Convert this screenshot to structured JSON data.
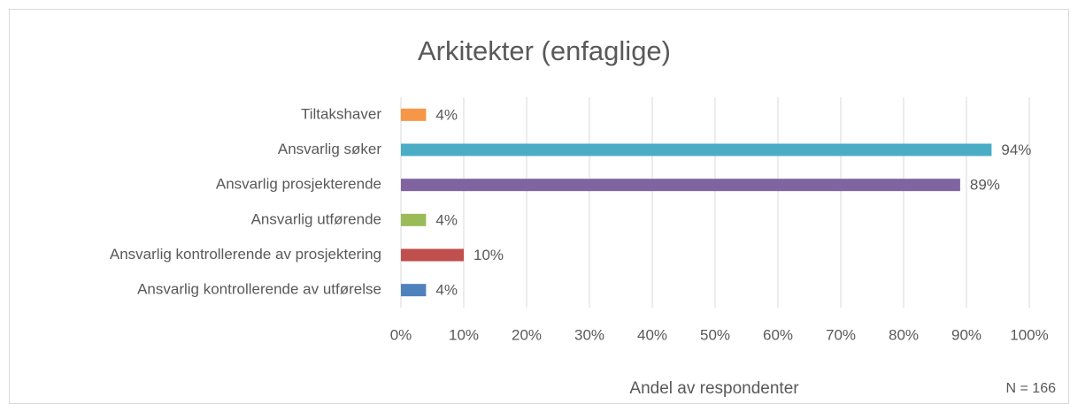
{
  "chart_data": {
    "type": "bar",
    "orientation": "horizontal",
    "title": "Arkitekter (enfaglige)",
    "x_label": "Andel av respondenter",
    "annotation": "N = 166",
    "categories": [
      "Tiltakshaver",
      "Ansvarlig søker",
      "Ansvarlig prosjekterende",
      "Ansvarlig utførende",
      "Ansvarlig kontrollerende av prosjektering",
      "Ansvarlig kontrollerende av utførelse"
    ],
    "values": [
      4,
      94,
      89,
      4,
      10,
      4
    ],
    "value_labels": [
      "4%",
      "94%",
      "89%",
      "4%",
      "10%",
      "4%"
    ],
    "colors": [
      "#f79646",
      "#4bacc6",
      "#8064a2",
      "#9bbb59",
      "#c0504d",
      "#4f81bd"
    ],
    "xlim": [
      0,
      100
    ],
    "xticks": [
      {
        "value": 0,
        "label": "0%"
      },
      {
        "value": 10,
        "label": "10%"
      },
      {
        "value": 20,
        "label": "20%"
      },
      {
        "value": 30,
        "label": "30%"
      },
      {
        "value": 40,
        "label": "40%"
      },
      {
        "value": 50,
        "label": "50%"
      },
      {
        "value": 60,
        "label": "60%"
      },
      {
        "value": 70,
        "label": "70%"
      },
      {
        "value": 80,
        "label": "80%"
      },
      {
        "value": 90,
        "label": "90%"
      },
      {
        "value": 100,
        "label": "100%"
      }
    ],
    "grid": true
  }
}
